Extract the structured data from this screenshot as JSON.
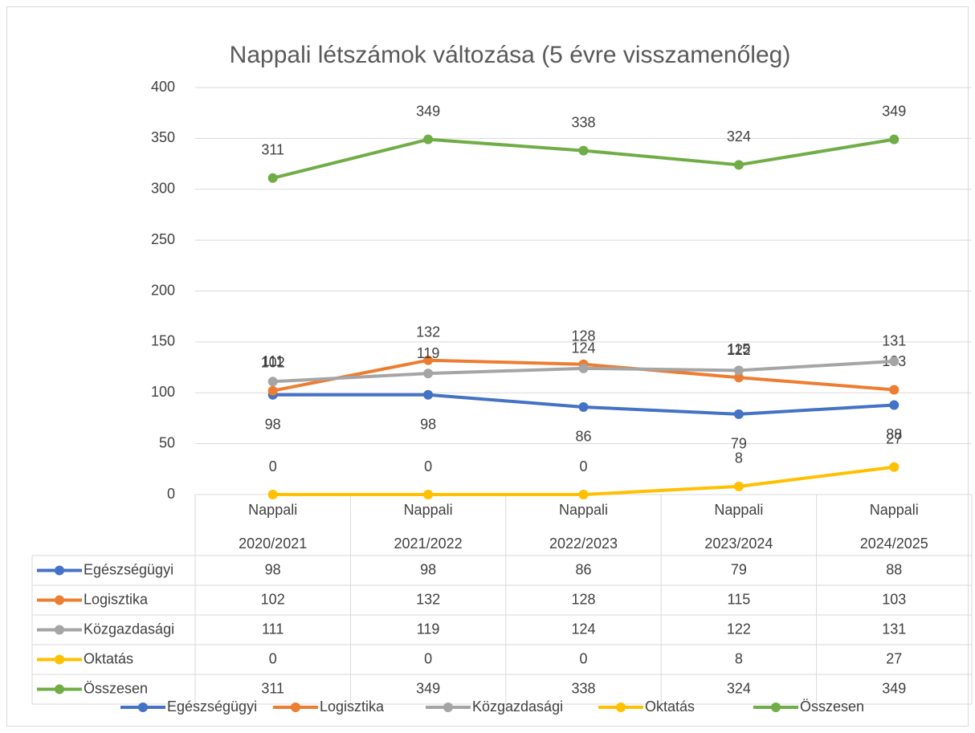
{
  "chart_data": {
    "type": "line",
    "title": "Nappali létszámok változása (5 évre visszamenőleg)",
    "categories": [
      "Nappali\n2020/2021",
      "Nappali\n2021/2022",
      "Nappali\n2022/2023",
      "Nappali\n2023/2024",
      "Nappali\n2024/2025"
    ],
    "series": [
      {
        "name": "Egészségügyi",
        "color": "#4472c4",
        "values": [
          98,
          98,
          86,
          79,
          88
        ]
      },
      {
        "name": "Logisztika",
        "color": "#ed7d31",
        "values": [
          102,
          132,
          128,
          115,
          103
        ]
      },
      {
        "name": "Közgazdasági",
        "color": "#a5a5a5",
        "values": [
          111,
          119,
          124,
          122,
          131
        ]
      },
      {
        "name": "Oktatás",
        "color": "#ffc000",
        "values": [
          0,
          0,
          0,
          8,
          27
        ]
      },
      {
        "name": "Összesen",
        "color": "#70ad47",
        "values": [
          311,
          349,
          338,
          324,
          349
        ]
      }
    ],
    "ylim": [
      0,
      400
    ],
    "yticks": [
      0,
      50,
      100,
      150,
      200,
      250,
      300,
      350,
      400
    ],
    "grid": true,
    "legend": "bottom",
    "data_table": true
  }
}
